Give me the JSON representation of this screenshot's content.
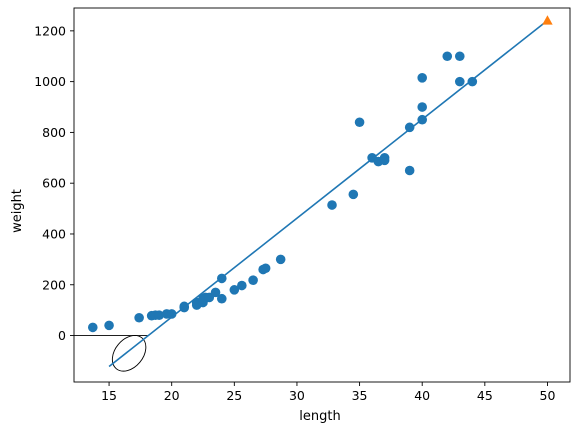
{
  "chart_data": {
    "type": "scatter",
    "xlabel": "length",
    "ylabel": "weight",
    "xlim": [
      12.2,
      51.8
    ],
    "ylim": [
      -183,
      1290
    ],
    "x_ticks": [
      15,
      20,
      25,
      30,
      35,
      40,
      45,
      50
    ],
    "y_ticks": [
      0,
      200,
      400,
      600,
      800,
      1000,
      1200
    ],
    "grid": false,
    "colors": {
      "points": "#1f77b4",
      "fit_line": "#1f77b4",
      "predicted": "#ff7f0e",
      "annotation": "#000000"
    },
    "series": [
      {
        "kind": "points",
        "x": [
          13.7,
          15.0,
          17.4,
          18.4,
          18.7,
          19.0,
          19.6,
          20.0,
          21.0,
          21.0,
          22.0,
          22.0,
          22.0,
          22.5,
          22.5,
          22.7,
          23.0,
          23.5,
          24.0,
          24.0,
          25.0,
          25.6,
          26.5,
          27.3,
          27.5,
          28.7,
          32.8,
          34.5,
          35.0,
          36.0,
          36.5,
          37.0,
          37.0,
          39.0,
          39.0,
          40.0,
          40.0,
          40.0,
          42.0,
          43.0,
          43.0,
          44.0
        ],
        "y": [
          32,
          40,
          70,
          78,
          80,
          80,
          85,
          85,
          110,
          115,
          125,
          130,
          120,
          130,
          145,
          150,
          150,
          170,
          225,
          145,
          180,
          197,
          218,
          260,
          265,
          300,
          514,
          556,
          840,
          700,
          685,
          700,
          690,
          650,
          820,
          850,
          900,
          1015,
          1100,
          1000,
          1100,
          1000
        ]
      },
      {
        "kind": "fit_line",
        "x": [
          15,
          50
        ],
        "y": [
          -122,
          1241
        ]
      },
      {
        "kind": "predicted",
        "x": [
          50
        ],
        "y": [
          1241
        ]
      }
    ],
    "annotations": [
      {
        "kind": "baseline",
        "x": [
          12.2,
          18.1
        ],
        "y": [
          0,
          0
        ]
      },
      {
        "kind": "ellipse",
        "cx": 16.6,
        "cy": -70,
        "rx_data": 1.6,
        "ry_data": 55
      }
    ]
  }
}
